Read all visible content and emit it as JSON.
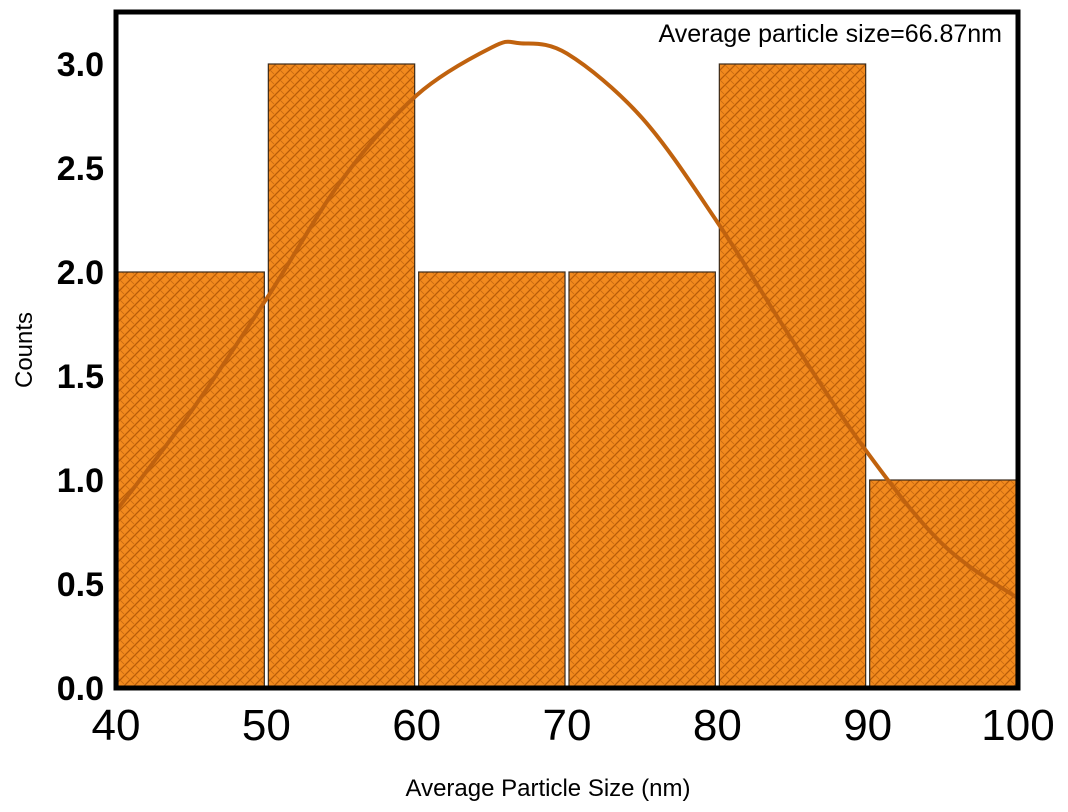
{
  "chart_data": {
    "type": "bar",
    "bins": [
      {
        "start": 40,
        "end": 50,
        "count": 2
      },
      {
        "start": 50,
        "end": 60,
        "count": 3
      },
      {
        "start": 60,
        "end": 70,
        "count": 2
      },
      {
        "start": 70,
        "end": 80,
        "count": 2
      },
      {
        "start": 80,
        "end": 90,
        "count": 3
      },
      {
        "start": 90,
        "end": 100,
        "count": 1
      }
    ],
    "fit_curve": {
      "type": "gaussian",
      "peak": 3.1,
      "center": 66.87,
      "x": [
        40,
        45,
        50,
        55,
        60,
        65,
        66.87,
        70,
        75,
        80,
        85,
        90,
        95,
        100
      ],
      "y": [
        0.85,
        1.33,
        1.87,
        2.44,
        2.85,
        3.08,
        3.1,
        3.05,
        2.74,
        2.24,
        1.67,
        1.13,
        0.69,
        0.43
      ]
    },
    "xlabel": "Average Particle Size (nm)",
    "ylabel": "Counts",
    "annotation": "Average particle size=66.87nm",
    "xlim": [
      40,
      100
    ],
    "ylim": [
      0,
      3.25
    ],
    "xticks": [
      "40",
      "50",
      "60",
      "70",
      "80",
      "90",
      "100"
    ],
    "yticks": [
      "0.0",
      "0.5",
      "1.0",
      "1.5",
      "2.0",
      "2.5",
      "3.0"
    ],
    "grid": false,
    "legend": "none",
    "colors": {
      "bar_fill": "#f28a1e",
      "bar_hatch": "#b85c08",
      "bar_edge": "#3a2a1a",
      "curve": "#c0620e",
      "axis": "#000000"
    }
  }
}
